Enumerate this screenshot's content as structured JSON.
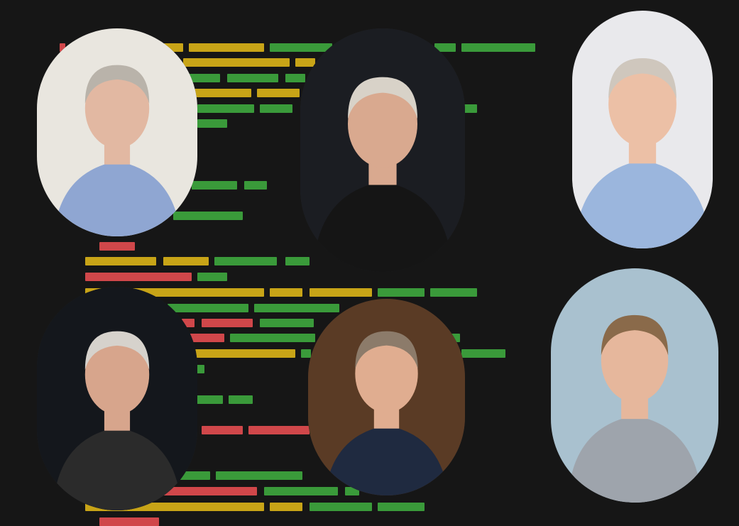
{
  "palette": {
    "background": "#161616",
    "code_yellow": "#c8a417",
    "code_green": "#3a9a3a",
    "code_red": "#d0474a"
  },
  "portraits": [
    {
      "id": "portrait-1",
      "description_icon": "person-photo-icon",
      "bg": "#e9e6df",
      "shirt": "#8fa6d2",
      "hair": "#b9b3aa",
      "skin": "#e2b8a2"
    },
    {
      "id": "portrait-2",
      "description_icon": "person-photo-icon",
      "bg": "#1b1d22",
      "shirt": "#151515",
      "hair": "#d8d2c8",
      "skin": "#d9a98f"
    },
    {
      "id": "portrait-3",
      "description_icon": "person-photo-icon",
      "bg": "#e9e9ec",
      "shirt": "#9bb6dd",
      "hair": "#cfc7bd",
      "skin": "#ecc0a6"
    },
    {
      "id": "portrait-4",
      "description_icon": "person-photo-icon",
      "bg": "#14171c",
      "shirt": "#2b2b2b",
      "hair": "#d6d2cc",
      "skin": "#d7a58c"
    },
    {
      "id": "portrait-5",
      "description_icon": "person-photo-icon",
      "bg": "#5a3b25",
      "shirt": "#1f2a40",
      "hair": "#8c7b6a",
      "skin": "#e0ad90"
    },
    {
      "id": "portrait-6",
      "description_icon": "person-photo-icon",
      "bg": "#a9c1cf",
      "shirt": "#9ea4ac",
      "hair": "#8a6a4a",
      "skin": "#e6b79c"
    }
  ]
}
